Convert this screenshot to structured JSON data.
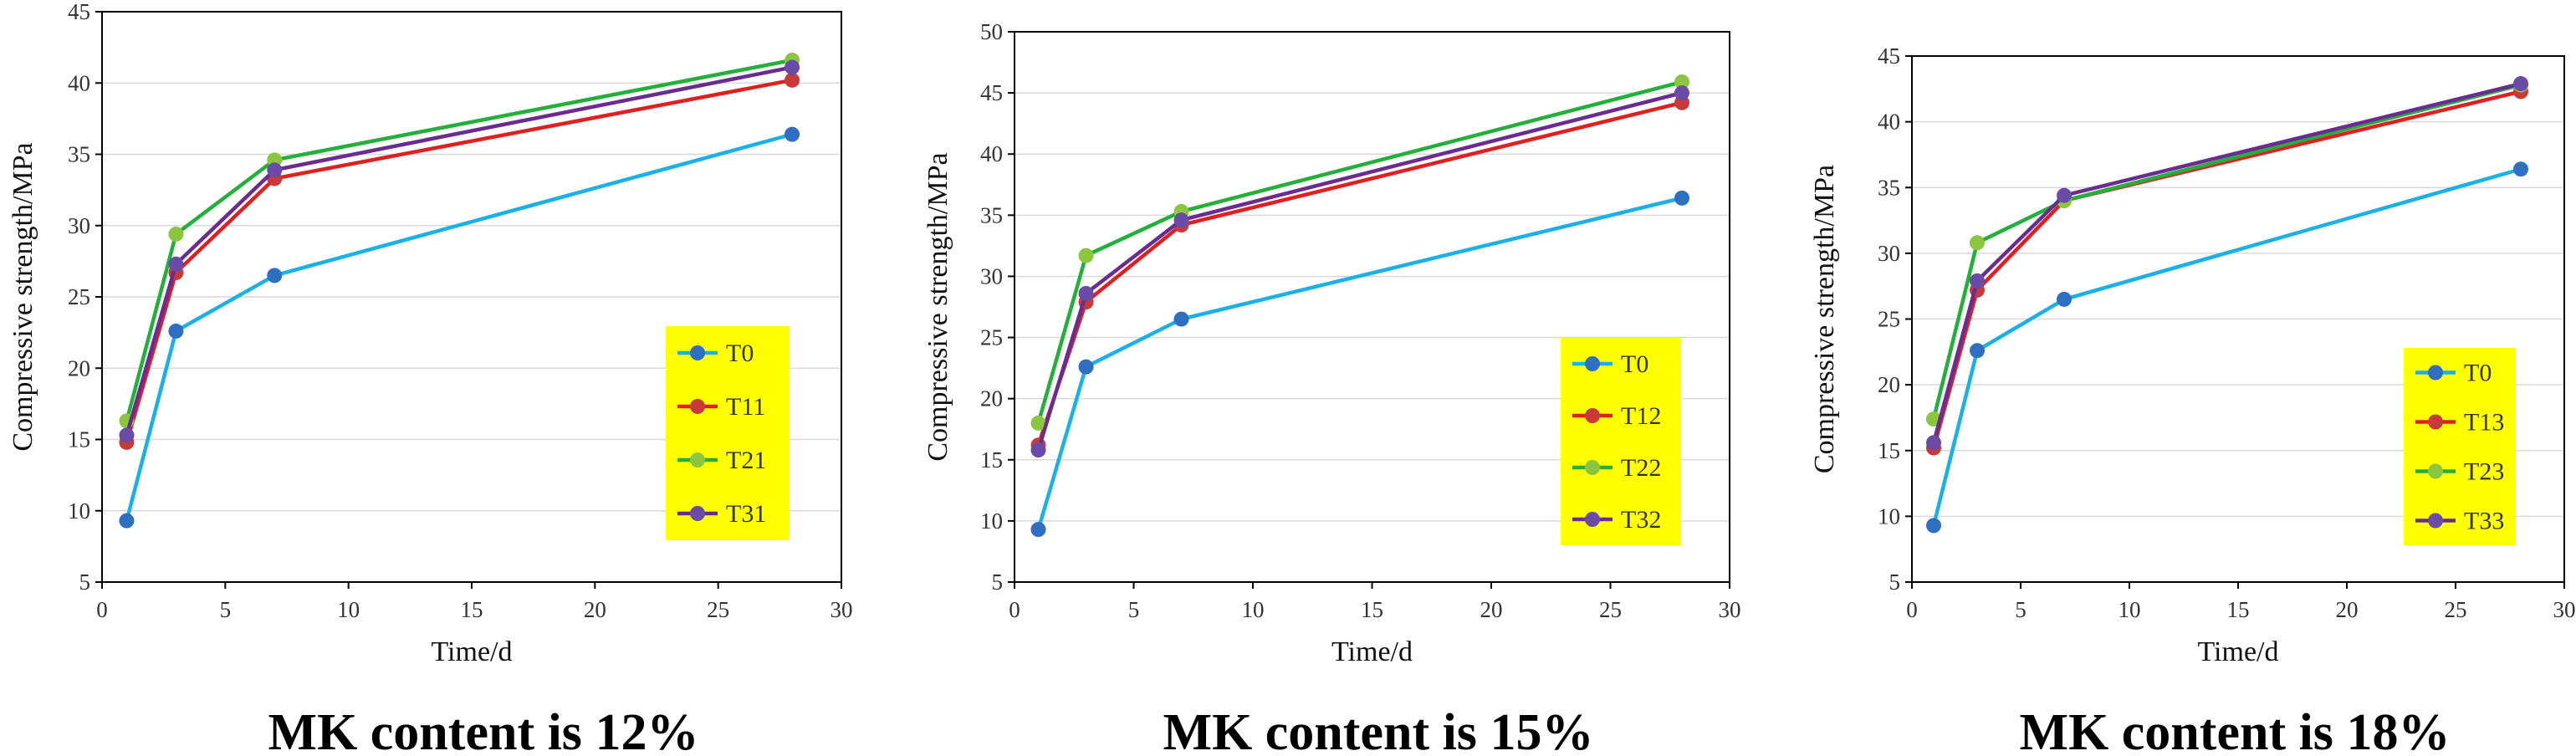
{
  "chart_data": [
    {
      "type": "line",
      "caption": "MK content is 12%",
      "xlabel": "Time/d",
      "ylabel": "Compressive strength/MPa",
      "xlim": [
        0,
        30
      ],
      "ylim": [
        5,
        45
      ],
      "xticks": [
        0,
        5,
        10,
        15,
        20,
        25,
        30
      ],
      "yticks": [
        5,
        10,
        15,
        20,
        25,
        30,
        35,
        40,
        45
      ],
      "grid": "horizontal",
      "legend_position": "bottom-right",
      "legend_background": "#ffff00",
      "x": [
        1,
        3,
        7,
        28
      ],
      "series": [
        {
          "name": "T0",
          "color": "#1ab0e8",
          "marker_color": "#2e6fc2",
          "values": [
            9.3,
            22.6,
            26.5,
            36.4
          ]
        },
        {
          "name": "T11",
          "color": "#e02020",
          "marker_color": "#c83a3a",
          "values": [
            14.8,
            26.7,
            33.3,
            40.2
          ]
        },
        {
          "name": "T21",
          "color": "#22b03a",
          "marker_color": "#8cc63f",
          "values": [
            16.3,
            29.4,
            34.6,
            41.6
          ]
        },
        {
          "name": "T31",
          "color": "#6a2c91",
          "marker_color": "#6a4ba8",
          "values": [
            15.3,
            27.3,
            33.9,
            41.1
          ]
        }
      ]
    },
    {
      "type": "line",
      "caption": "MK content is 15%",
      "xlabel": "Time/d",
      "ylabel": "Compressive strength/MPa",
      "xlim": [
        0,
        30
      ],
      "ylim": [
        5,
        50
      ],
      "xticks": [
        0,
        5,
        10,
        15,
        20,
        25,
        30
      ],
      "yticks": [
        5,
        10,
        15,
        20,
        25,
        30,
        35,
        40,
        45,
        50
      ],
      "grid": "horizontal",
      "legend_position": "bottom-right",
      "legend_background": "#ffff00",
      "x": [
        1,
        3,
        7,
        28
      ],
      "series": [
        {
          "name": "T0",
          "color": "#1ab0e8",
          "marker_color": "#2e6fc2",
          "values": [
            9.3,
            22.6,
            26.5,
            36.4
          ]
        },
        {
          "name": "T12",
          "color": "#e02020",
          "marker_color": "#c83a3a",
          "values": [
            16.2,
            27.9,
            34.2,
            44.2
          ]
        },
        {
          "name": "T22",
          "color": "#22b03a",
          "marker_color": "#8cc63f",
          "values": [
            18.0,
            31.7,
            35.3,
            45.9
          ]
        },
        {
          "name": "T32",
          "color": "#6a2c91",
          "marker_color": "#6a4ba8",
          "values": [
            15.8,
            28.6,
            34.6,
            45.0
          ]
        }
      ]
    },
    {
      "type": "line",
      "caption": "MK content is 18%",
      "xlabel": "Time/d",
      "ylabel": "Compressive strength/MPa",
      "xlim": [
        0,
        30
      ],
      "ylim": [
        5,
        45
      ],
      "xticks": [
        0,
        5,
        10,
        15,
        20,
        25,
        30
      ],
      "yticks": [
        5,
        10,
        15,
        20,
        25,
        30,
        35,
        40,
        45
      ],
      "grid": "horizontal",
      "legend_position": "bottom-right",
      "legend_background": "#ffff00",
      "x": [
        1,
        3,
        7,
        28
      ],
      "series": [
        {
          "name": "T0",
          "color": "#1ab0e8",
          "marker_color": "#2e6fc2",
          "values": [
            9.3,
            22.6,
            26.5,
            36.4
          ]
        },
        {
          "name": "T13",
          "color": "#e02020",
          "marker_color": "#c83a3a",
          "values": [
            15.2,
            27.2,
            34.0,
            42.3
          ]
        },
        {
          "name": "T23",
          "color": "#22b03a",
          "marker_color": "#8cc63f",
          "values": [
            17.4,
            30.8,
            34.0,
            42.8
          ]
        },
        {
          "name": "T33",
          "color": "#6a2c91",
          "marker_color": "#6a4ba8",
          "values": [
            15.6,
            27.9,
            34.4,
            42.9
          ]
        }
      ]
    }
  ]
}
